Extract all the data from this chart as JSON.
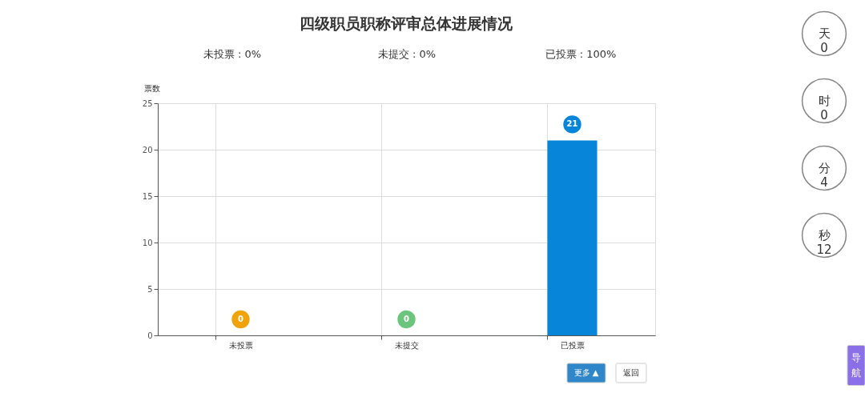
{
  "chart_data": {
    "type": "bar",
    "title": "四级职员职称评审总体进展情况",
    "ylabel": "票数",
    "categories": [
      "未投票",
      "未提交",
      "已投票"
    ],
    "values": [
      0,
      0,
      21
    ],
    "colors": [
      "#f0a30a",
      "#6cc57c",
      "#0786d9"
    ],
    "ylim": [
      0,
      25
    ],
    "yticks": [
      0,
      5,
      10,
      15,
      20,
      25
    ],
    "grid": true,
    "data_labels": true,
    "annotations": [
      "未投票 : 0%",
      "未提交 : 0%",
      "已投票 : 100%",
      "天\n0",
      "时\n0",
      "分\n4",
      "秒\n12",
      "更多 ▲",
      "返回",
      "导",
      "航"
    ]
  }
}
